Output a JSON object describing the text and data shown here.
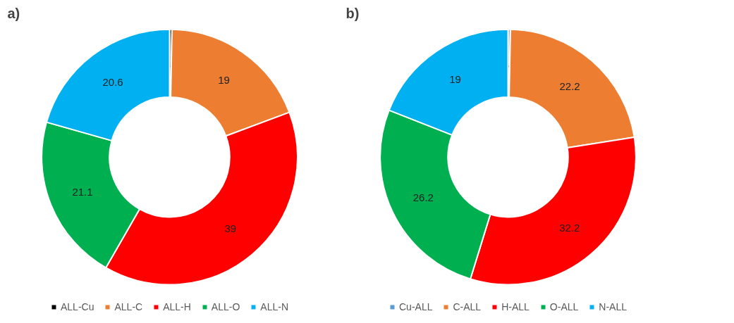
{
  "chart_data": [
    {
      "type": "donut",
      "title": "a)",
      "categories": [
        "ALL-Cu",
        "ALL-C",
        "ALL-H",
        "ALL-O",
        "ALL-N"
      ],
      "values": [
        0.3,
        19,
        39,
        21.1,
        20.6
      ],
      "colors": [
        "#000000",
        "#ed7d31",
        "#ff0000",
        "#00b050",
        "#00b0f0"
      ],
      "data_labels": true,
      "legend": "bottom"
    },
    {
      "type": "donut",
      "title": "b)",
      "categories": [
        "Cu-ALL",
        "C-ALL",
        "H-ALL",
        "O-ALL",
        "N-ALL"
      ],
      "values": [
        0.3,
        22.2,
        32.2,
        26.2,
        19
      ],
      "colors": [
        "#5b9bd5",
        "#ed7d31",
        "#ff0000",
        "#00b050",
        "#00b0f0"
      ],
      "data_labels": true,
      "legend": "bottom"
    }
  ]
}
